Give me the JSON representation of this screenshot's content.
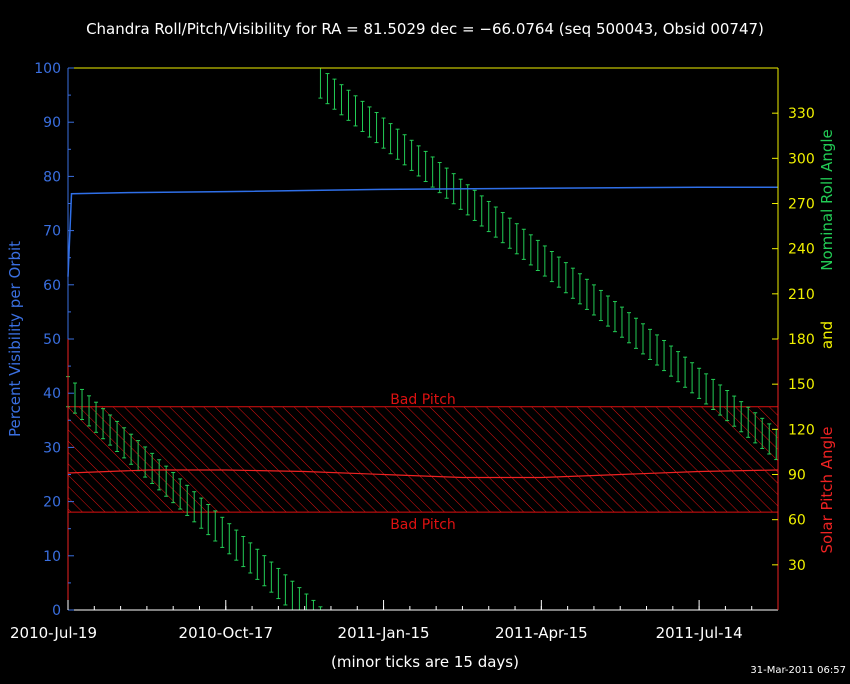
{
  "chart_data": {
    "type": "line",
    "title": "Chandra Roll/Pitch/Visibility for RA = 81.5029 dec = −66.0764 (seq 500043, Obsid 00747)",
    "xlabel": "(minor ticks are 15 days)",
    "timestamp": "31-Mar-2011 06:57",
    "x_tick_labels": [
      "2010-Jul-19",
      "2010-Oct-17",
      "2011-Jan-15",
      "2011-Apr-15",
      "2011-Jul-14"
    ],
    "x_range": [
      "2010-Jul-19",
      "2011-Aug-28"
    ],
    "axes": {
      "left": {
        "label": "Percent Visibility per Orbit",
        "range": [
          0,
          100
        ],
        "ticks": [
          "0",
          "10",
          "20",
          "30",
          "40",
          "50",
          "60",
          "70",
          "80",
          "90",
          "100"
        ],
        "color": "#3a6fe0"
      },
      "right_roll": {
        "label": "Nominal Roll Angle",
        "range": [
          0,
          360
        ],
        "ticks": [
          "30",
          "60",
          "90",
          "120",
          "150",
          "180",
          "210",
          "240",
          "270",
          "300",
          "330"
        ],
        "color": "#f0f000",
        "label_color": "#22cc55"
      },
      "right_pitch": {
        "label": "Solar Pitch Angle",
        "range": [
          0,
          180
        ],
        "connector": "and",
        "color": "#ee2222"
      }
    },
    "bad_pitch": {
      "label_upper": "Bad Pitch",
      "label_lower": "Bad Pitch",
      "pitch_range": [
        65,
        135
      ],
      "color": "#dd1111"
    },
    "series": [
      {
        "name": "Percent Visibility per Orbit",
        "axis": "left",
        "color": "#2f6fe8",
        "points": [
          [
            "2010-Jul-19",
            61.5
          ],
          [
            "2010-Jul-21",
            76.8
          ],
          [
            "2010-Aug-18",
            77.0
          ],
          [
            "2010-Oct-17",
            77.2
          ],
          [
            "2011-Jan-15",
            77.6
          ],
          [
            "2011-Apr-15",
            77.8
          ],
          [
            "2011-Jul-14",
            78.0
          ],
          [
            "2011-Aug-28",
            78.0
          ]
        ]
      },
      {
        "name": "Solar Pitch Angle",
        "axis": "right_pitch",
        "color": "#ee2222",
        "points": [
          [
            "2010-Jul-19",
            91
          ],
          [
            "2010-Sep-03",
            93
          ],
          [
            "2010-Oct-17",
            93
          ],
          [
            "2010-Dec-01",
            92
          ],
          [
            "2011-Jan-15",
            90
          ],
          [
            "2011-Mar-01",
            88
          ],
          [
            "2011-Apr-15",
            88
          ],
          [
            "2011-May-30",
            90
          ],
          [
            "2011-Jul-14",
            92
          ],
          [
            "2011-Aug-28",
            93
          ]
        ]
      },
      {
        "name": "Nominal Roll Angle",
        "axis": "right_roll",
        "color": "#22cc55",
        "band_width_deg": 20,
        "segments": [
          {
            "from": [
              "2010-Jul-19",
              155
            ],
            "to": [
              "2010-Dec-12",
              0
            ]
          },
          {
            "from": [
              "2010-Dec-10",
              360
            ],
            "to": [
              "2011-Aug-28",
              119
            ]
          }
        ]
      }
    ]
  }
}
